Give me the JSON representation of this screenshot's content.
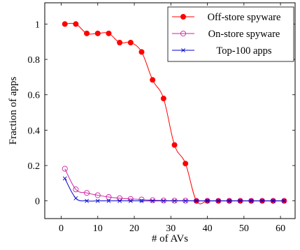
{
  "chart_data": {
    "type": "line",
    "xlabel": "# of AVs",
    "ylabel": "Fraction of apps",
    "xlim": [
      -4.5,
      64
    ],
    "ylim": [
      -0.1,
      1.12
    ],
    "xticks": [
      0,
      10,
      20,
      30,
      40,
      50,
      60
    ],
    "yticks": [
      0,
      0.2,
      0.4,
      0.6,
      0.8,
      1
    ],
    "ytick_labels": [
      "0",
      "0.2",
      "0.4",
      "0.6",
      "0.8",
      "1"
    ],
    "grid": false,
    "legend_position": "top-right",
    "series": [
      {
        "name": "Off-store spyware",
        "color": "#ff0000",
        "marker": "filled-circle",
        "x": [
          1,
          4,
          7,
          10,
          13,
          16,
          19,
          22,
          25,
          28,
          31,
          34,
          37,
          40,
          43,
          46,
          49,
          52,
          55,
          58,
          61
        ],
        "y": [
          1.0,
          1.0,
          0.947,
          0.947,
          0.947,
          0.895,
          0.895,
          0.842,
          0.684,
          0.579,
          0.316,
          0.211,
          0,
          0,
          0,
          0,
          0,
          0,
          0,
          0,
          0
        ]
      },
      {
        "name": "On-store spyware",
        "color": "#d020a0",
        "marker": "open-circle",
        "x": [
          1,
          4,
          7,
          10,
          13,
          16,
          19,
          22,
          25,
          28,
          31,
          34,
          37,
          40,
          43,
          46,
          49,
          52,
          55,
          58,
          61
        ],
        "y": [
          0.182,
          0.065,
          0.045,
          0.032,
          0.022,
          0.015,
          0.011,
          0.008,
          0.004,
          0.002,
          0.001,
          0.001,
          0,
          0,
          0,
          0,
          0,
          0,
          0,
          0,
          0
        ]
      },
      {
        "name": "Top-100 apps",
        "color": "#0000cc",
        "marker": "cross",
        "x": [
          1,
          4,
          7,
          10,
          13,
          16,
          19,
          22,
          25,
          28,
          31,
          34,
          37,
          40,
          43,
          46,
          49,
          52,
          55,
          58,
          61
        ],
        "y": [
          0.127,
          0.015,
          0,
          0,
          0,
          0,
          0,
          0,
          0,
          0,
          0,
          0,
          0,
          0,
          0,
          0,
          0,
          0,
          0,
          0,
          0
        ]
      }
    ]
  }
}
